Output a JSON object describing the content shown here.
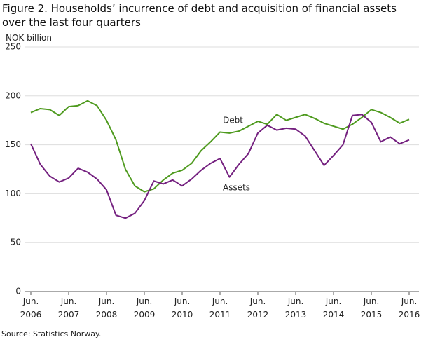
{
  "chart_data": {
    "type": "line",
    "title": "Figure 2. Households’ incurrence of debt and acquisition of financial assets over the last four quarters",
    "y_label": "NOK billion",
    "source": "Source: Statistics Norway.",
    "categories": [
      "Jun. 2006",
      null,
      null,
      null,
      "Jun. 2007",
      null,
      null,
      null,
      "Jun. 2008",
      null,
      null,
      null,
      "Jun. 2009",
      null,
      null,
      null,
      "Jun. 2010",
      null,
      null,
      null,
      "Jun. 2011",
      null,
      null,
      null,
      "Jun. 2012",
      null,
      null,
      null,
      "Jun. 2013",
      null,
      null,
      null,
      "Jun. 2014",
      null,
      null,
      null,
      "Jun. 2015",
      null,
      null,
      null,
      "Jun. 2016"
    ],
    "series": [
      {
        "name": "Debt",
        "color": "#4e9a1e",
        "values": [
          183,
          187,
          186,
          180,
          189,
          190,
          195,
          190,
          175,
          155,
          125,
          108,
          102,
          105,
          114,
          121,
          124,
          131,
          144,
          153,
          163,
          162,
          164,
          169,
          174,
          171,
          181,
          175,
          178,
          181,
          177,
          172,
          169,
          166,
          171,
          178,
          186,
          183,
          178,
          172,
          176
        ]
      },
      {
        "name": "Assets",
        "color": "#74207f",
        "values": [
          151,
          130,
          118,
          112,
          116,
          126,
          122,
          115,
          104,
          78,
          75,
          80,
          93,
          113,
          110,
          114,
          108,
          115,
          124,
          131,
          136,
          117,
          130,
          141,
          162,
          170,
          165,
          167,
          166,
          159,
          144,
          129,
          139,
          150,
          180,
          181,
          173,
          153,
          158,
          151,
          155
        ]
      }
    ],
    "ylim": [
      0,
      250
    ],
    "yticks": [
      0,
      50,
      100,
      150,
      200,
      250
    ],
    "grid": true
  }
}
